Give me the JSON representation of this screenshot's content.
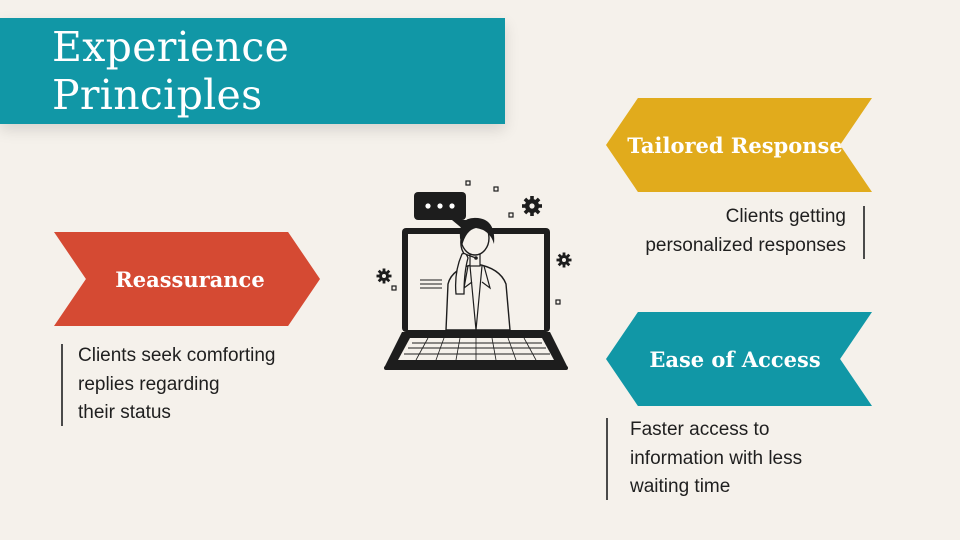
{
  "title": "Experience Principles",
  "colors": {
    "background": "#f5f1eb",
    "title_band": "#1197a6",
    "reassurance": "#d54a33",
    "tailored": "#e1ab1c",
    "ease": "#1197a6",
    "text": "#1f1f1f"
  },
  "principles": [
    {
      "label": "Reassurance",
      "description": "Clients seek comforting\nreplies regarding\ntheir status"
    },
    {
      "label": "Tailored Response",
      "description": "Clients getting\npersonalized responses"
    },
    {
      "label": "Ease of Access",
      "description": "Faster access to\ninformation with less\nwaiting time"
    }
  ],
  "illustration": {
    "name": "support-agent-laptop-illustration"
  }
}
